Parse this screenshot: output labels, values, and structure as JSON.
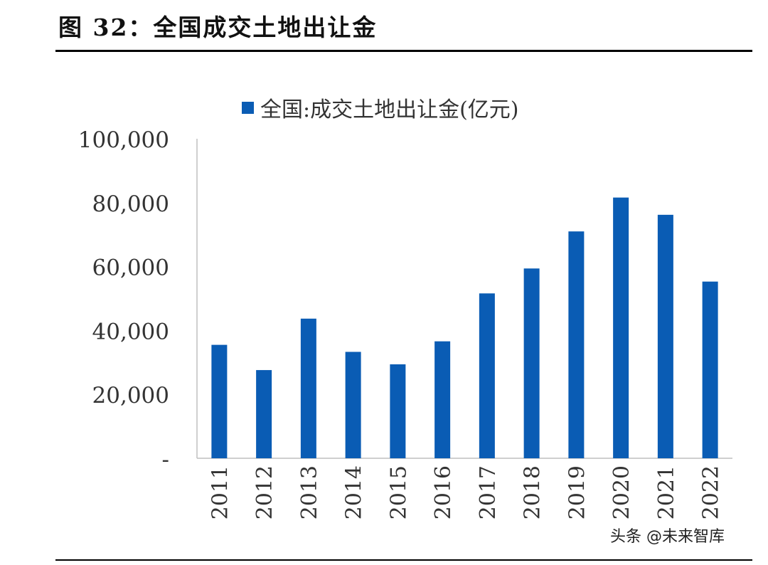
{
  "page": {
    "figure_title": "图 32：全国成交土地出让金",
    "watermark": "头条 @未来智库"
  },
  "chart_data": {
    "type": "bar",
    "categories": [
      "2011",
      "2012",
      "2013",
      "2014",
      "2015",
      "2016",
      "2017",
      "2018",
      "2019",
      "2020",
      "2021",
      "2022"
    ],
    "series": [
      {
        "name": "全国:成交土地出让金(亿元)",
        "values": [
          35500,
          27600,
          43700,
          33300,
          29400,
          36600,
          51600,
          59400,
          71000,
          81600,
          76200,
          55300
        ]
      }
    ],
    "ylim": [
      0,
      100000
    ],
    "yticks": [
      "-",
      "20,000",
      "40,000",
      "60,000",
      "80,000",
      "100,000"
    ],
    "ytick_values": [
      0,
      20000,
      40000,
      60000,
      80000,
      100000
    ],
    "legend_position": "top",
    "grid": false,
    "colors": {
      "bar": "#0A5CB4",
      "axis": "#bfbfbf",
      "text": "#333333"
    }
  }
}
